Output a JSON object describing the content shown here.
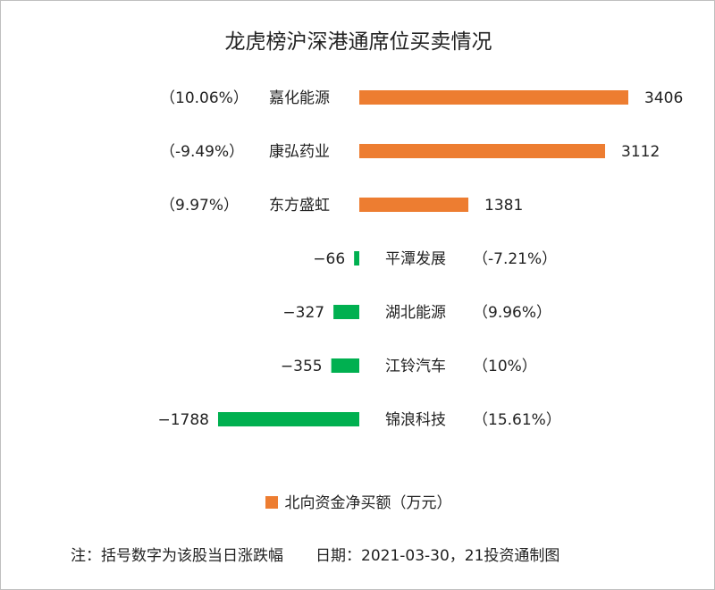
{
  "chart_data": {
    "type": "bar",
    "orientation": "horizontal",
    "title": "龙虎榜沪深港通席位买卖情况",
    "categories": [
      "嘉化能源",
      "康弘药业",
      "东方盛虹",
      "平潭发展",
      "湖北能源",
      "江铃汽车",
      "锦浪科技"
    ],
    "pct_labels": [
      "（10.06%）",
      "（-9.49%）",
      "（9.97%）",
      "（-7.21%）",
      "（9.96%）",
      "（10%）",
      "（15.61%）"
    ],
    "series": [
      {
        "name": "北向资金净买额（万元）",
        "values": [
          3406,
          3112,
          1381,
          -66,
          -327,
          -355,
          -1788
        ]
      }
    ],
    "colors": {
      "positive": "#ed7d31",
      "negative": "#00b050"
    },
    "legend": "bottom",
    "grid": false
  },
  "note": "注：括号数字为该股当日涨跌幅",
  "date": "日期：2021-03-30，21投资通制图"
}
